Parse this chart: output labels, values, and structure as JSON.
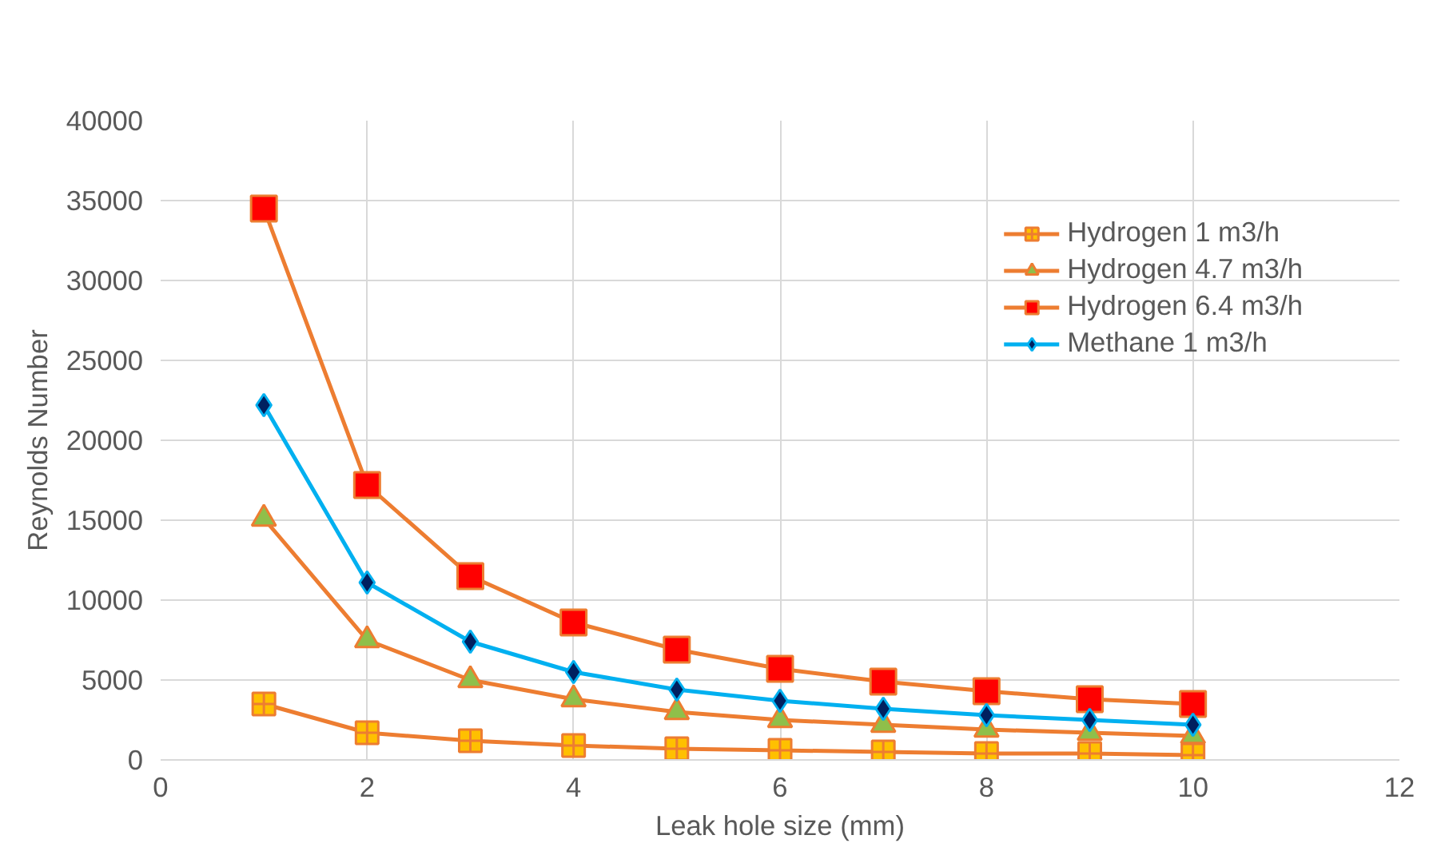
{
  "chart_data": {
    "type": "line",
    "xlabel": "Leak hole size (mm)",
    "ylabel": "Reynolds Number",
    "x": [
      1,
      2,
      3,
      4,
      5,
      6,
      7,
      8,
      9,
      10
    ],
    "xlim": [
      0,
      12
    ],
    "xticks": [
      0,
      2,
      4,
      6,
      8,
      10,
      12
    ],
    "ylim": [
      0,
      40000
    ],
    "yticks": [
      0,
      5000,
      10000,
      15000,
      20000,
      25000,
      30000,
      35000,
      40000
    ],
    "grid": true,
    "legend": "top right",
    "series": [
      {
        "name": "Hydrogen 1 m3/h",
        "color": "#ed7d31",
        "colors": [
          "#ffc000",
          "#ffc000",
          "#ffc000",
          "#ffc000",
          "#ffc000",
          "#ffc000",
          "#ffc000",
          "#ffc000",
          "#ffc000",
          "#ffc000"
        ],
        "marker": "cross",
        "values": [
          3500,
          1700,
          1200,
          900,
          700,
          600,
          500,
          400,
          400,
          300
        ]
      },
      {
        "name": "Hydrogen 4.7 m3/h",
        "color": "#ed7d31",
        "colors": [
          "#8fbf4a",
          "#8fbf4a",
          "#8fbf4a",
          "#8fbf4a",
          "#8fbf4a",
          "#8fbf4a",
          "#8fbf4a",
          "#8fbf4a",
          "#8fbf4a",
          "#8fbf4a"
        ],
        "marker": "triangle",
        "values": [
          15100,
          7500,
          5000,
          3800,
          3000,
          2500,
          2200,
          1900,
          1700,
          1500
        ]
      },
      {
        "name": "Hydrogen 6.4 m3/h",
        "color": "#ed7d31",
        "colors": [
          "#ff0000",
          "#ff0000",
          "#ff0000",
          "#ff0000",
          "#ff0000",
          "#ff0000",
          "#ff0000",
          "#ff0000",
          "#ff0000",
          "#ff0000"
        ],
        "marker": "square",
        "values": [
          34500,
          17200,
          11500,
          8600,
          6900,
          5700,
          4900,
          4300,
          3800,
          3500
        ]
      },
      {
        "name": "Methane 1 m3/h",
        "color": "#00b0f0",
        "colors": [
          "#002060",
          "#002060",
          "#002060",
          "#002060",
          "#002060",
          "#002060",
          "#002060",
          "#002060",
          "#002060",
          "#002060"
        ],
        "marker": "diamond",
        "values": [
          22200,
          11100,
          7400,
          5500,
          4400,
          3700,
          3200,
          2800,
          2500,
          2200
        ]
      }
    ]
  }
}
